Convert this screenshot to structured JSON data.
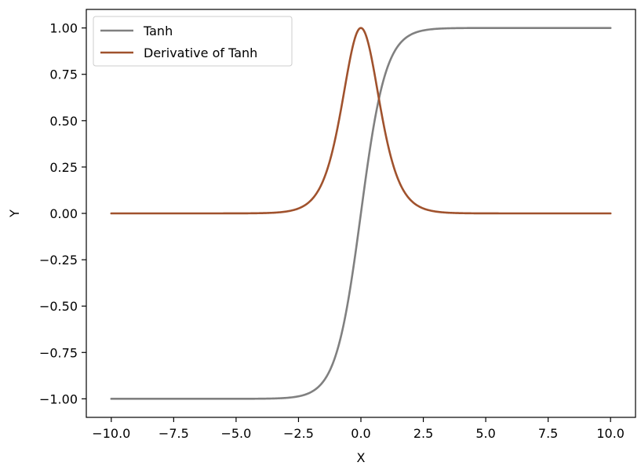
{
  "chart_data": {
    "type": "line",
    "title": "",
    "xlabel": "X",
    "ylabel": "Y",
    "xlim": [
      -11.0,
      11.0
    ],
    "ylim": [
      -1.1,
      1.1
    ],
    "xticks": [
      -10.0,
      -7.5,
      -5.0,
      -2.5,
      0.0,
      2.5,
      5.0,
      7.5,
      10.0
    ],
    "xtick_labels": [
      "−10.0",
      "−7.5",
      "−5.0",
      "−2.5",
      "0.0",
      "2.5",
      "5.0",
      "7.5",
      "10.0"
    ],
    "yticks": [
      1.0,
      0.75,
      0.5,
      0.25,
      0.0,
      -0.25,
      -0.5,
      -0.75,
      -1.0
    ],
    "ytick_labels": [
      "1.00",
      "0.75",
      "0.50",
      "0.25",
      "0.00",
      "−0.25",
      "−0.50",
      "−0.75",
      "−1.00"
    ],
    "grid": false,
    "legend_position": "top-left",
    "series": [
      {
        "name": "Tanh",
        "color": "#808080",
        "x": [
          -10,
          -4,
          -3,
          -2.5,
          -2,
          -1.5,
          -1,
          -0.75,
          -0.5,
          -0.25,
          0,
          0.25,
          0.5,
          0.75,
          1,
          1.5,
          2,
          2.5,
          3,
          4,
          10
        ],
        "y": [
          -1.0,
          -0.9993,
          -0.9951,
          -0.9866,
          -0.964,
          -0.9051,
          -0.7616,
          -0.6351,
          -0.4621,
          -0.2449,
          0.0,
          0.2449,
          0.4621,
          0.6351,
          0.7616,
          0.9051,
          0.964,
          0.9866,
          0.9951,
          0.9993,
          1.0
        ]
      },
      {
        "name": "Derivative of Tanh",
        "color": "#a0522d",
        "x": [
          -10,
          -4,
          -3,
          -2.5,
          -2,
          -1.5,
          -1,
          -0.75,
          -0.5,
          -0.25,
          0,
          0.25,
          0.5,
          0.75,
          1,
          1.5,
          2,
          2.5,
          3,
          4,
          10
        ],
        "y": [
          0.0,
          0.0013,
          0.0099,
          0.0266,
          0.0707,
          0.1807,
          0.42,
          0.5966,
          0.7864,
          0.94,
          1.0,
          0.94,
          0.7864,
          0.5966,
          0.42,
          0.1807,
          0.0707,
          0.0266,
          0.0099,
          0.0013,
          0.0
        ]
      }
    ]
  }
}
